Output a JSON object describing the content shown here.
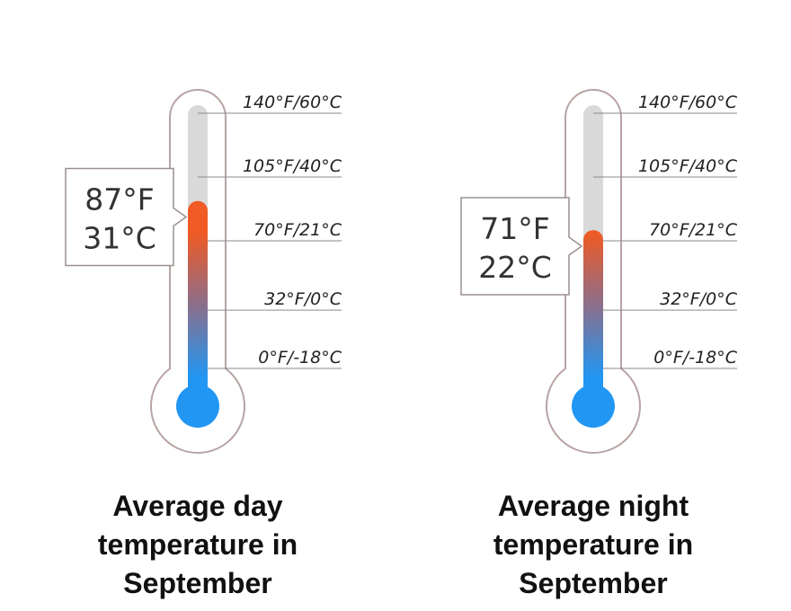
{
  "chart_data": {
    "type": "thermometer",
    "scale": {
      "ticks": [
        {
          "f": 140,
          "c": 60,
          "label": "140°F/60°C"
        },
        {
          "f": 105,
          "c": 40,
          "label": "105°F/40°C"
        },
        {
          "f": 70,
          "c": 21,
          "label": "70°F/21°C"
        },
        {
          "f": 32,
          "c": 0,
          "label": "32°F/0°C"
        },
        {
          "f": 0,
          "c": -18,
          "label": "0°F/-18°C"
        }
      ]
    },
    "thermometers": [
      {
        "value_f": 87,
        "value_c": 31,
        "reading_f": "87°F",
        "reading_c": "31°C",
        "caption_lines": [
          "Average day",
          "temperature in",
          "September"
        ]
      },
      {
        "value_f": 71,
        "value_c": 22,
        "reading_f": "71°F",
        "reading_c": "22°C",
        "caption_lines": [
          "Average night",
          "temperature in",
          "September"
        ]
      }
    ],
    "colors": {
      "outline": "#b8a3a3",
      "empty_tube": "#d9d9d9",
      "hot": "#f05a24",
      "mid": "#8a6f8c",
      "cold": "#2196f3",
      "tick_line": "#8a8a8a",
      "bubble_border": "#9a8f8f"
    }
  }
}
